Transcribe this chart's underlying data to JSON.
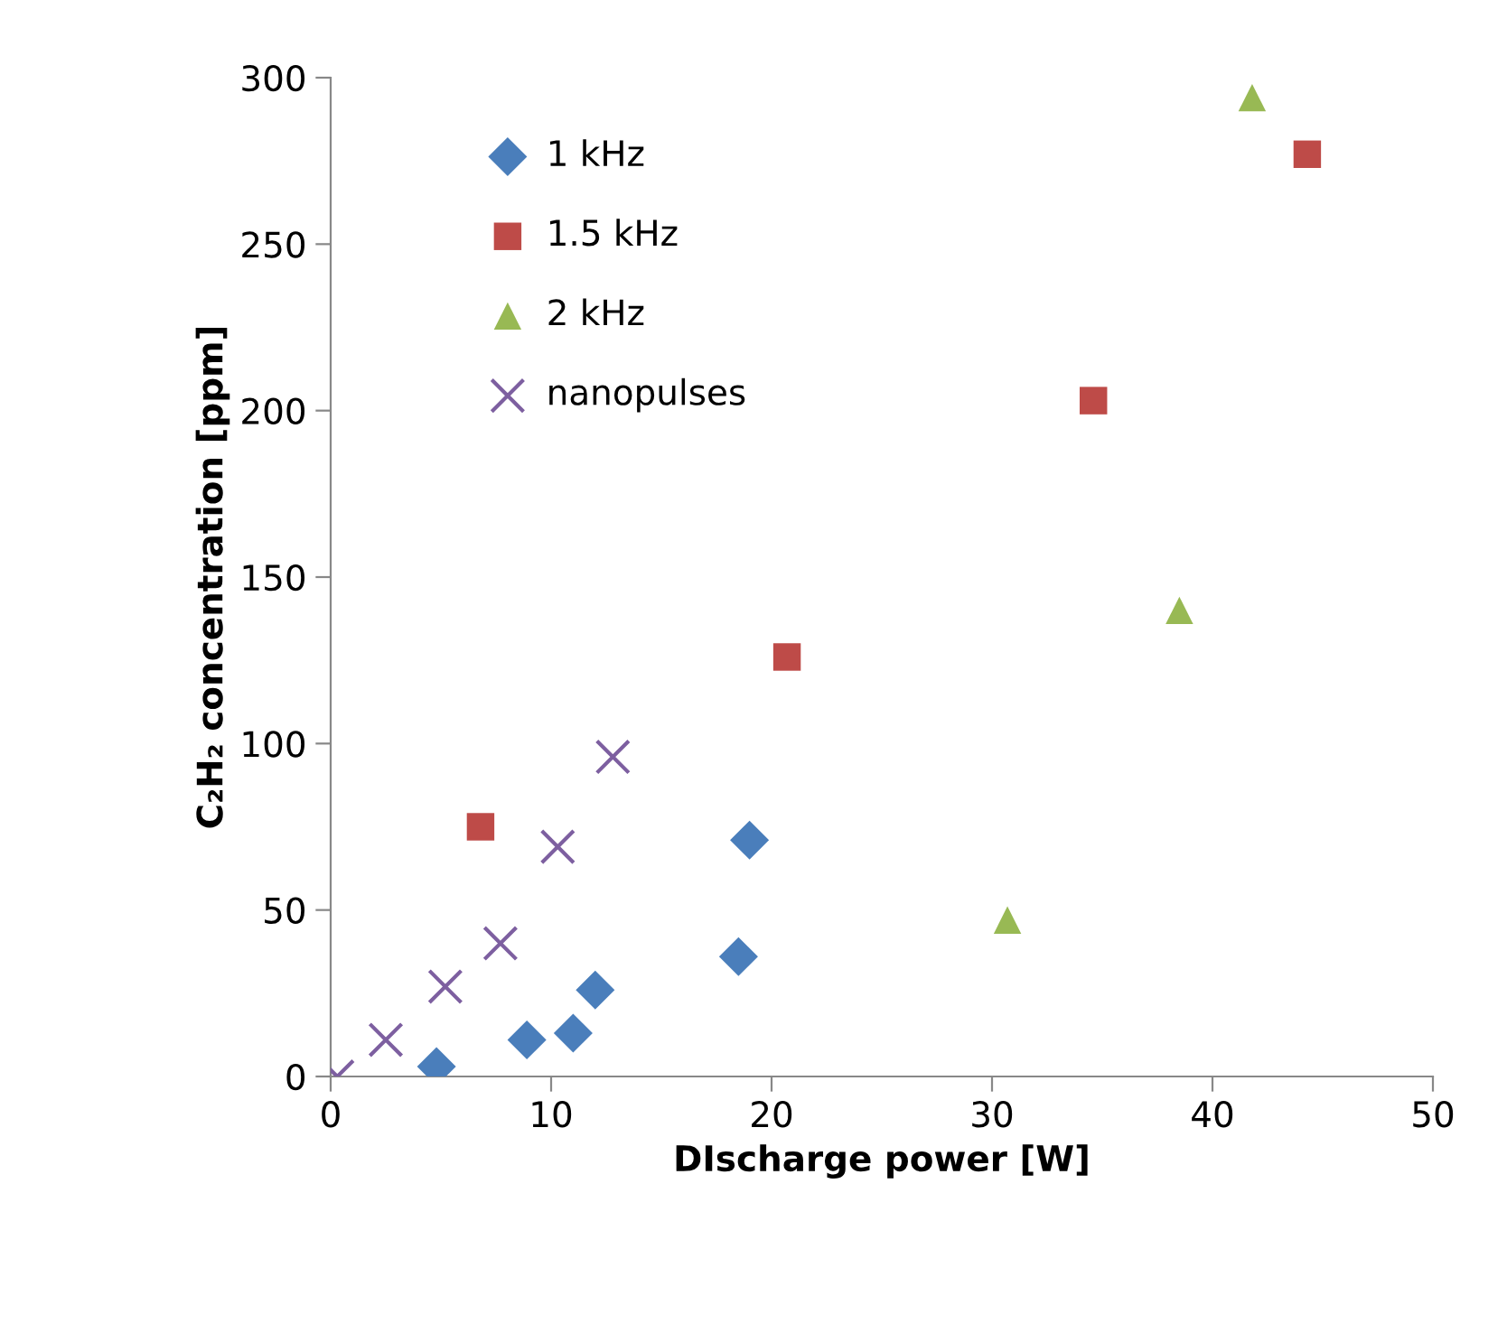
{
  "chart_data": {
    "type": "scatter",
    "xlabel": "DIscharge power [W]",
    "ylabel": "C₂H₂ concentration [ppm]",
    "xlim": [
      0,
      50
    ],
    "xticks": [
      0,
      10,
      20,
      30,
      40,
      50
    ],
    "ylim": [
      0,
      300
    ],
    "yticks": [
      0,
      50,
      100,
      150,
      200,
      250,
      300
    ],
    "grid": false,
    "legend": "top left",
    "series": [
      {
        "name": "1 kHz",
        "color": "#4a7ebb",
        "marker": "diamond",
        "x": [
          4.8,
          8.9,
          11,
          12,
          18.5,
          19
        ],
        "values": [
          3,
          11,
          13,
          26,
          36,
          71
        ]
      },
      {
        "name": "1.5 kHz",
        "color": "#be4b48",
        "marker": "square",
        "x": [
          6.8,
          20.7,
          34.6,
          44.3
        ],
        "values": [
          75,
          126,
          203,
          277
        ]
      },
      {
        "name": "2 kHz",
        "color": "#98b954",
        "marker": "triangle",
        "x": [
          30.7,
          38.5,
          41.8
        ],
        "values": [
          47,
          140,
          294
        ]
      },
      {
        "name": "nanopulses",
        "color": "#7d5fa0",
        "marker": "cross",
        "x": [
          0.3,
          2.5,
          5.2,
          7.7,
          10.3,
          12.8
        ],
        "values": [
          0,
          11,
          27,
          40,
          69,
          96
        ]
      }
    ]
  }
}
